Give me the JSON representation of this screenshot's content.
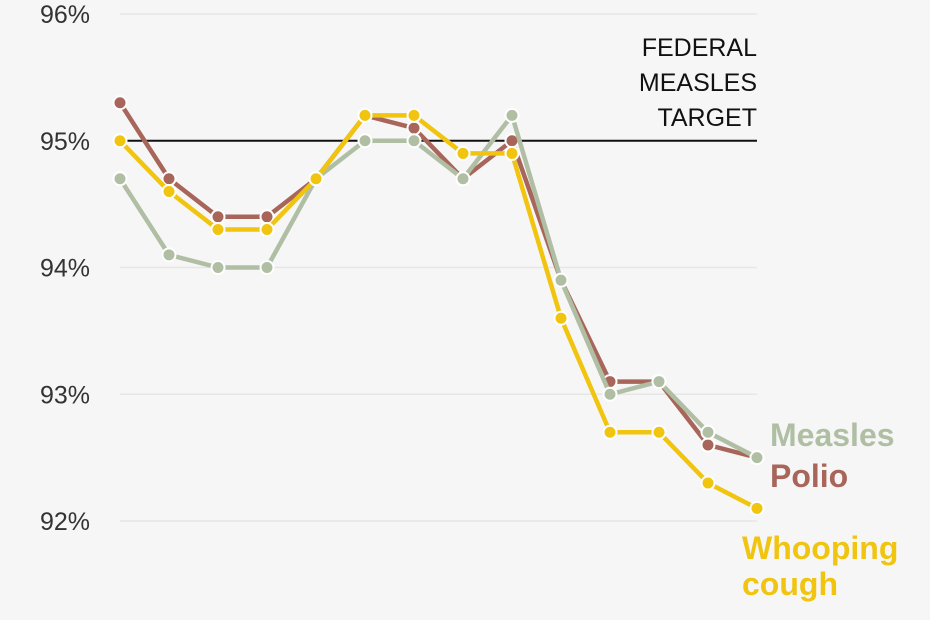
{
  "chart_data": {
    "type": "line",
    "x": [
      1,
      2,
      3,
      4,
      5,
      6,
      7,
      8,
      9,
      10,
      11,
      12,
      13,
      14
    ],
    "ylim": [
      92,
      96
    ],
    "y_ticks": [
      92,
      93,
      94,
      95,
      96
    ],
    "y_tick_labels": [
      "92%",
      "93%",
      "94%",
      "95%",
      "96%"
    ],
    "grid": true,
    "reference_line": {
      "value": 95,
      "label_lines": [
        "FEDERAL",
        "MEASLES",
        "TARGET"
      ]
    },
    "series": [
      {
        "name": "Polio",
        "label_lines": [
          "Polio"
        ],
        "color": "#a8665a",
        "values": [
          95.3,
          94.7,
          94.4,
          94.4,
          94.7,
          95.2,
          95.1,
          94.7,
          95.0,
          93.9,
          93.1,
          93.1,
          92.6,
          92.5
        ]
      },
      {
        "name": "Measles",
        "label_lines": [
          "Measles"
        ],
        "color": "#b0bfa4",
        "values": [
          94.7,
          94.1,
          94.0,
          94.0,
          94.7,
          95.0,
          95.0,
          94.7,
          95.2,
          93.9,
          93.0,
          93.1,
          92.7,
          92.5
        ]
      },
      {
        "name": "Whooping cough",
        "label_lines": [
          "Whooping",
          "cough"
        ],
        "color": "#f1c40f",
        "values": [
          95.0,
          94.6,
          94.3,
          94.3,
          94.7,
          95.2,
          95.2,
          94.9,
          94.9,
          93.6,
          92.7,
          92.7,
          92.3,
          92.1
        ]
      }
    ]
  }
}
